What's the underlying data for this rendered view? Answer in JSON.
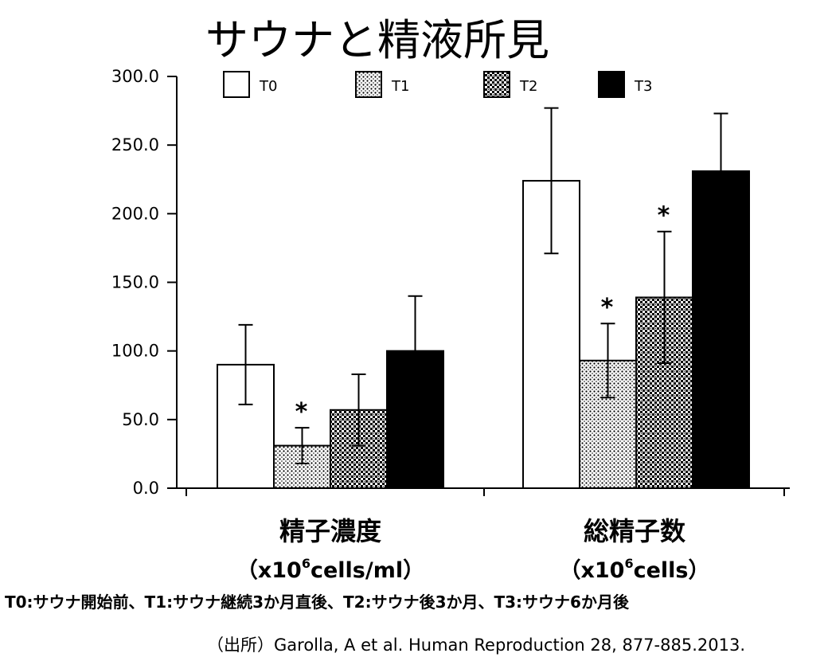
{
  "title": "サウナと精液所見",
  "chart_data": {
    "type": "bar",
    "title": "サウナと精液所見",
    "ylim": [
      0,
      300
    ],
    "yticks": [
      "300.0",
      "250.0",
      "200.0",
      "150.0",
      "100.0",
      "50.0",
      "0.0"
    ],
    "ytick_values": [
      300,
      250,
      200,
      150,
      100,
      50,
      0
    ],
    "grid": false,
    "legend_position": "top",
    "categories": [
      {
        "label": "精子濃度",
        "unit_prefix": "（x10",
        "unit_exp": "6",
        "unit_suffix": "cells/ml）"
      },
      {
        "label": "総精子数",
        "unit_prefix": "（x10",
        "unit_exp": "6",
        "unit_suffix": "cells）"
      }
    ],
    "series": [
      {
        "name": "T0",
        "pattern": "white",
        "values": [
          90,
          224
        ],
        "errors": [
          29,
          53
        ],
        "significant": [
          false,
          false
        ]
      },
      {
        "name": "T1",
        "pattern": "dots",
        "values": [
          31,
          93
        ],
        "errors": [
          13,
          27
        ],
        "significant": [
          true,
          true
        ]
      },
      {
        "name": "T2",
        "pattern": "checks",
        "values": [
          57,
          139
        ],
        "errors": [
          26,
          48
        ],
        "significant": [
          false,
          true
        ]
      },
      {
        "name": "T3",
        "pattern": "black",
        "values": [
          100,
          231
        ],
        "errors": [
          40,
          42
        ],
        "significant": [
          false,
          false
        ]
      }
    ],
    "significance_marker": "*"
  },
  "legend_note": "T0:サウナ開始前、T1:サウナ継続3か月直後、T2:サウナ後3か月、T3:サウナ6か月後",
  "source": "（出所）Garolla, A et al. Human Reproduction 28, 877-885.2013.",
  "colors": {
    "bar_outline": "#000000",
    "background": "#ffffff"
  }
}
